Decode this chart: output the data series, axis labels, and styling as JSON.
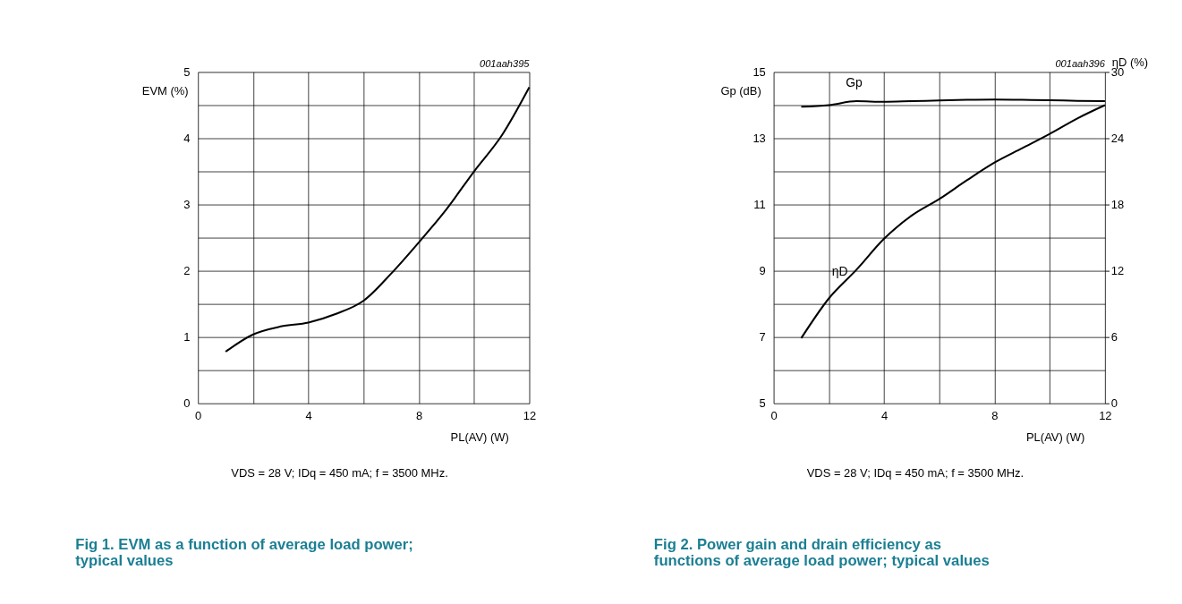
{
  "chart_data": [
    {
      "type": "line",
      "title": "Fig 1.    EVM as a function of average load power; typical values",
      "xlabel": "PL(AV) (W)",
      "ylabel": "EVM (%)",
      "x": [
        1,
        2,
        3,
        4,
        5,
        6,
        7,
        8,
        9,
        10,
        11,
        12
      ],
      "series": [
        {
          "color": "#000000",
          "values": [
            0.78,
            1.04,
            1.16,
            1.22,
            1.35,
            1.55,
            1.96,
            2.43,
            2.93,
            3.5,
            4.04,
            4.77
          ]
        }
      ],
      "xlim": [
        0,
        12
      ],
      "xticks": [
        0,
        {
          "value": 2,
          "label": null
        },
        4,
        {
          "value": 6,
          "label": null
        },
        8,
        {
          "value": 10,
          "label": null
        },
        12
      ],
      "ylim": [
        0,
        5
      ],
      "yticks": [
        0,
        {
          "value": 0.5,
          "label": null
        },
        1,
        {
          "value": 1.5,
          "label": null
        },
        2,
        {
          "value": 2.5,
          "label": null
        },
        3,
        {
          "value": 3.5,
          "label": null
        },
        4,
        {
          "value": 4.5,
          "label": null
        },
        5
      ],
      "grid": true,
      "marker": "none",
      "line_style": "solid",
      "annotations": [
        "001aah395",
        "VDS = 28 V; IDq = 450 mA; f = 3500 MHz."
      ]
    },
    {
      "type": "line",
      "title": "Fig 2.    Power gain and drain efficiency as functions of average load power; typical values",
      "xlabel": "PL(AV) (W)",
      "ylabel": "Gp (dB)",
      "y2label": "ηD (%)",
      "x": [
        1,
        2,
        3,
        4,
        5,
        6,
        7,
        8,
        9,
        10,
        11,
        12
      ],
      "series": [
        {
          "name": "Gp",
          "color": "#000000",
          "values": [
            13.95,
            14.0,
            14.12,
            14.1,
            14.12,
            14.14,
            14.16,
            14.17,
            14.16,
            14.15,
            14.13,
            14.12
          ]
        },
        {
          "name": "ηD",
          "color": "#000000",
          "axis": "y2",
          "values": [
            5.9,
            9.5,
            12.1,
            14.9,
            17.0,
            18.5,
            20.2,
            21.8,
            23.1,
            24.4,
            25.8,
            27.0
          ]
        }
      ],
      "xlim": [
        0,
        12
      ],
      "xticks": [
        0,
        {
          "value": 2,
          "label": null
        },
        4,
        {
          "value": 6,
          "label": null
        },
        8,
        {
          "value": 10,
          "label": null
        },
        12
      ],
      "ylim": [
        5,
        15
      ],
      "yticks": [
        5,
        {
          "value": 6,
          "label": null
        },
        7,
        {
          "value": 8,
          "label": null
        },
        9,
        {
          "value": 10,
          "label": null
        },
        11,
        {
          "value": 12,
          "label": null
        },
        13,
        {
          "value": 14,
          "label": null
        },
        15
      ],
      "y2lim": [
        0,
        30
      ],
      "y2ticks": [
        0,
        6,
        12,
        18,
        24,
        30
      ],
      "grid": true,
      "marker": "none",
      "line_style": "solid",
      "annotations": [
        "001aah396",
        "VDS = 28 V; IDq = 450 mA; f = 3500 MHz."
      ]
    }
  ]
}
